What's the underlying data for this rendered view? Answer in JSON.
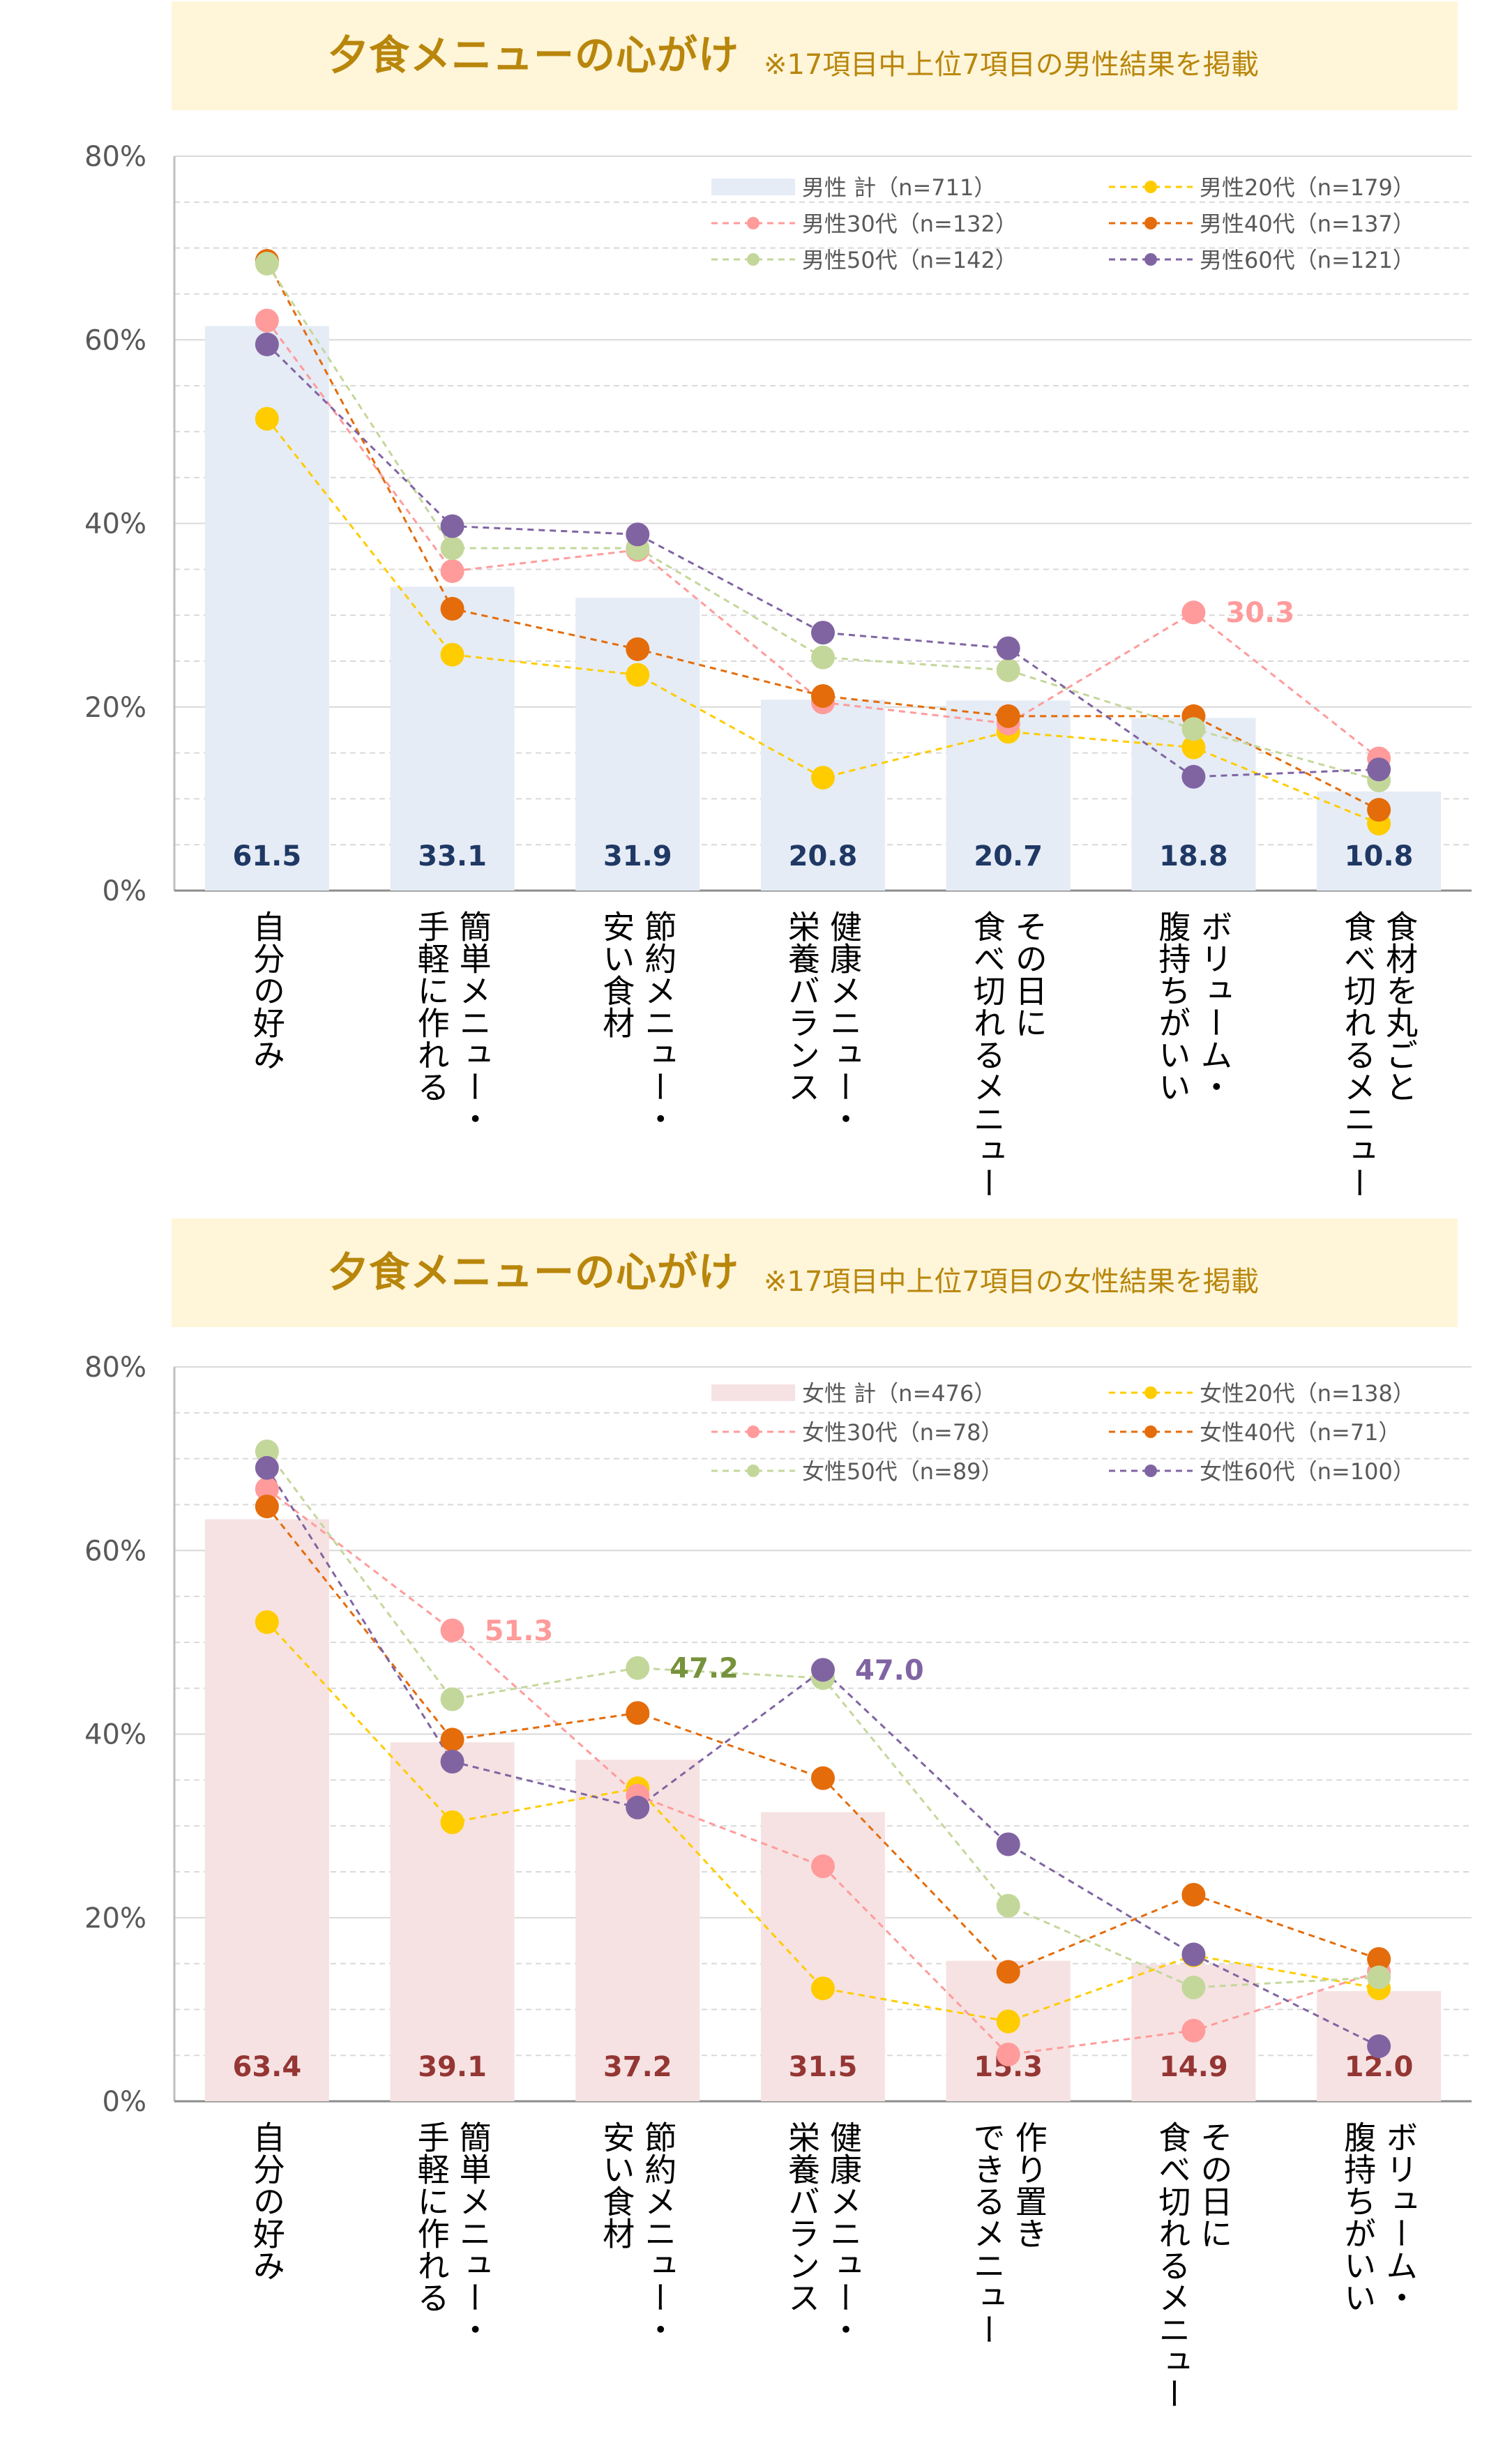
{
  "chart_data": [
    {
      "type": "bar",
      "title": "夕食メニューの心がけ",
      "subtitle": "※17項目中上位7項目の男性結果を掲載",
      "ylim": [
        0,
        80
      ],
      "yticks": [
        "0%",
        "20%",
        "40%",
        "60%",
        "80%"
      ],
      "categories": [
        "自分の好み",
        "簡単メニュー・\n手軽に作れる",
        "節約メニュー・\n安い食材",
        "健康メニュー・\n栄養バランス",
        "その日に\n食べ切れるメニュー",
        "ボリューム・\n腹持ちがいい",
        "食材を丸ごと\n食べ切れるメニュー"
      ],
      "bar_series": {
        "name": "男性 計（n=711）",
        "color": "#e5ecf6",
        "values": [
          61.5,
          33.1,
          31.9,
          20.8,
          20.7,
          18.8,
          10.8
        ],
        "label_color": "#1f3864"
      },
      "series": [
        {
          "name": "男性20代（n=179）",
          "color": "#ffcc00",
          "values": [
            51.4,
            25.7,
            23.5,
            12.3,
            17.3,
            15.6,
            7.3
          ]
        },
        {
          "name": "男性30代（n=132）",
          "color": "#ff9b9b",
          "values": [
            62.1,
            34.8,
            37.1,
            20.5,
            18.2,
            30.3,
            14.4
          ]
        },
        {
          "name": "男性40代（n=137）",
          "color": "#e46c0a",
          "values": [
            68.6,
            30.7,
            26.3,
            21.2,
            19.0,
            19.0,
            8.8
          ]
        },
        {
          "name": "男性50代（n=142）",
          "color": "#c4d79b",
          "values": [
            68.3,
            37.3,
            37.3,
            25.4,
            24.0,
            17.6,
            12.0
          ]
        },
        {
          "name": "男性60代（n=121）",
          "color": "#8064a2",
          "values": [
            59.5,
            39.7,
            38.8,
            28.1,
            26.4,
            12.4,
            13.2
          ]
        }
      ],
      "annotations": [
        {
          "series": "男性30代（n=132）",
          "category_index": 5,
          "text": "30.3",
          "color": "#ff9b9b"
        }
      ]
    },
    {
      "type": "bar",
      "title": "夕食メニューの心がけ",
      "subtitle": "※17項目中上位7項目の女性結果を掲載",
      "ylim": [
        0,
        80
      ],
      "yticks": [
        "0%",
        "20%",
        "40%",
        "60%",
        "80%"
      ],
      "categories": [
        "自分の好み",
        "簡単メニュー・\n手軽に作れる",
        "節約メニュー・\n安い食材",
        "健康メニュー・\n栄養バランス",
        "作り置き\nできるメニュー",
        "その日に\n食べ切れるメニュー",
        "ボリューム・\n腹持ちがいい"
      ],
      "bar_series": {
        "name": "女性 計（n=476）",
        "color": "#f6e2e2",
        "values": [
          63.4,
          39.1,
          37.2,
          31.5,
          15.3,
          14.9,
          12.0
        ],
        "label_color": "#943634"
      },
      "series": [
        {
          "name": "女性20代（n=138）",
          "color": "#ffcc00",
          "values": [
            52.2,
            30.4,
            34.1,
            12.3,
            8.7,
            15.9,
            12.3
          ]
        },
        {
          "name": "女性30代（n=78）",
          "color": "#ff9b9b",
          "values": [
            66.7,
            51.3,
            33.3,
            25.6,
            5.1,
            7.7,
            14.1
          ]
        },
        {
          "name": "女性40代（n=71）",
          "color": "#e46c0a",
          "values": [
            64.8,
            39.4,
            42.3,
            35.2,
            14.1,
            22.5,
            15.5
          ]
        },
        {
          "name": "女性50代（n=89）",
          "color": "#c4d79b",
          "values": [
            70.8,
            43.8,
            47.2,
            46.1,
            21.3,
            12.4,
            13.5
          ]
        },
        {
          "name": "女性60代（n=100）",
          "color": "#8064a2",
          "values": [
            69.0,
            37.0,
            32.0,
            47.0,
            28.0,
            16.0,
            6.0
          ]
        }
      ],
      "annotations": [
        {
          "series": "女性30代（n=78）",
          "category_index": 1,
          "text": "51.3",
          "color": "#ff9b9b"
        },
        {
          "series": "女性50代（n=89）",
          "category_index": 2,
          "text": "47.2",
          "color": "#76923c"
        },
        {
          "series": "女性60代（n=100）",
          "category_index": 3,
          "text": "47.0",
          "color": "#8064a2"
        }
      ]
    }
  ]
}
